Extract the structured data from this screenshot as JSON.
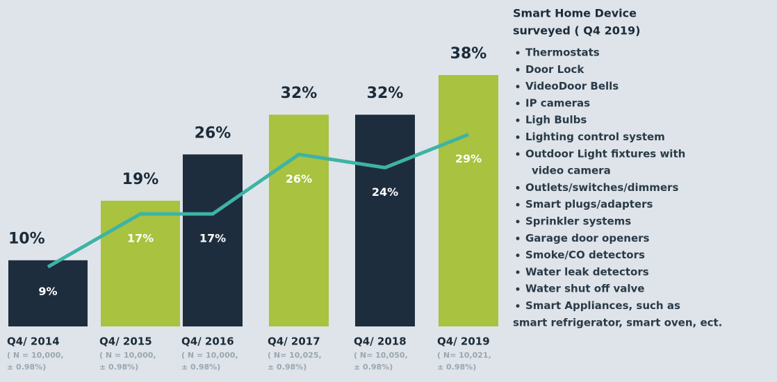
{
  "chart_data": {
    "type": "bar",
    "categories": [
      "Q4/ 2014",
      "Q4/ 2015",
      "Q4/ 2016",
      "Q4/ 2017",
      "Q4/ 2018",
      "Q4/ 2019"
    ],
    "sublabels": [
      [
        "( N = 10,000,",
        "± 0.98%)"
      ],
      [
        "( N = 10,000,",
        "± 0.98%)"
      ],
      [
        "( N = 10,000,",
        "± 0.98%)"
      ],
      [
        "( N= 10,025,",
        "± 0.98%)"
      ],
      [
        "( N= 10,050,",
        "± 0.98%)"
      ],
      [
        "( N= 10,021,",
        "± 0.98%)"
      ]
    ],
    "series": [
      {
        "type": "bar",
        "colors": [
          "#1e2d3d",
          "#a9c23f",
          "#1e2d3d",
          "#a9c23f",
          "#1e2d3d",
          "#a9c23f"
        ],
        "values": [
          10,
          19,
          26,
          32,
          32,
          38
        ],
        "value_labels": [
          "10%",
          "19%",
          "26%",
          "32%",
          "32%",
          "38%"
        ]
      },
      {
        "type": "line",
        "color": "#3db3a6",
        "values": [
          9,
          17,
          17,
          26,
          24,
          29
        ],
        "value_labels": [
          "9%",
          "17%",
          "17%",
          "26%",
          "24%",
          "29%"
        ]
      }
    ]
  },
  "sidebar": {
    "title": [
      "Smart Home Device",
      "surveyed ( Q4 2019)"
    ],
    "items": [
      [
        "Thermostats"
      ],
      [
        "Door Lock"
      ],
      [
        "VideoDoor Bells"
      ],
      [
        "IP cameras"
      ],
      [
        "Ligh Bulbs"
      ],
      [
        "Lighting control system"
      ],
      [
        "Outdoor Light fixtures with",
        "video  camera"
      ],
      [
        "Outlets/switches/dimmers"
      ],
      [
        "Smart plugs/adapters"
      ],
      [
        "Sprinkler systems"
      ],
      [
        "Garage door openers"
      ],
      [
        "Smoke/CO detectors"
      ],
      [
        "Water leak detectors"
      ],
      [
        "Water shut off valve"
      ],
      [
        " Smart Appliances, such as",
        "smart refrigerator, smart oven, ect."
      ]
    ]
  }
}
